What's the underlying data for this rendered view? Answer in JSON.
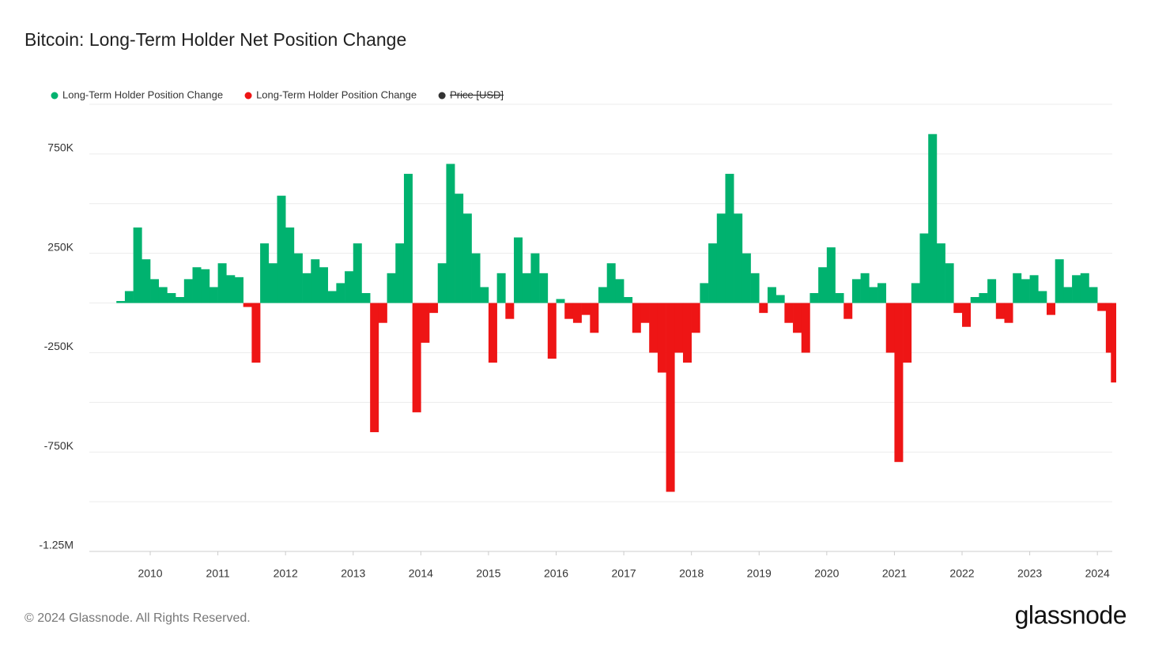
{
  "chart_data": {
    "type": "bar",
    "title": "Bitcoin: Long-Term Holder Net Position Change",
    "x": [
      2009.5,
      2009.625,
      2009.75,
      2009.875,
      2010,
      2010.125,
      2010.25,
      2010.375,
      2010.5,
      2010.625,
      2010.75,
      2010.875,
      2011,
      2011.125,
      2011.25,
      2011.375,
      2011.5,
      2011.625,
      2011.75,
      2011.875,
      2012,
      2012.125,
      2012.25,
      2012.375,
      2012.5,
      2012.625,
      2012.75,
      2012.875,
      2013,
      2013.125,
      2013.25,
      2013.375,
      2013.5,
      2013.625,
      2013.75,
      2013.875,
      2014,
      2014.125,
      2014.25,
      2014.375,
      2014.5,
      2014.625,
      2014.75,
      2014.875,
      2015,
      2015.125,
      2015.25,
      2015.375,
      2015.5,
      2015.625,
      2015.75,
      2015.875,
      2016,
      2016.125,
      2016.25,
      2016.375,
      2016.5,
      2016.625,
      2016.75,
      2016.875,
      2017,
      2017.125,
      2017.25,
      2017.375,
      2017.5,
      2017.625,
      2017.75,
      2017.875,
      2018,
      2018.125,
      2018.25,
      2018.375,
      2018.5,
      2018.625,
      2018.75,
      2018.875,
      2019,
      2019.125,
      2019.25,
      2019.375,
      2019.5,
      2019.625,
      2019.75,
      2019.875,
      2020,
      2020.125,
      2020.25,
      2020.375,
      2020.5,
      2020.625,
      2020.75,
      2020.875,
      2021,
      2021.125,
      2021.25,
      2021.375,
      2021.5,
      2021.625,
      2021.75,
      2021.875,
      2022,
      2022.125,
      2022.25,
      2022.375,
      2022.5,
      2022.625,
      2022.75,
      2022.875,
      2023,
      2023.125,
      2023.25,
      2023.375,
      2023.5,
      2023.625,
      2023.75,
      2023.875,
      2024,
      2024.125,
      2024.2
    ],
    "series": [
      {
        "name": "Long-Term Holder Position Change",
        "color": "#00b26f",
        "values": [
          10000,
          60000,
          380000,
          220000,
          120000,
          80000,
          50000,
          30000,
          120000,
          180000,
          170000,
          80000,
          200000,
          140000,
          130000,
          null,
          null,
          300000,
          200000,
          540000,
          380000,
          250000,
          150000,
          220000,
          180000,
          60000,
          100000,
          160000,
          300000,
          50000,
          null,
          null,
          150000,
          300000,
          650000,
          null,
          null,
          null,
          200000,
          700000,
          550000,
          450000,
          250000,
          80000,
          null,
          150000,
          null,
          330000,
          150000,
          250000,
          150000,
          null,
          20000,
          null,
          null,
          null,
          null,
          80000,
          200000,
          120000,
          30000,
          null,
          null,
          null,
          null,
          null,
          null,
          null,
          null,
          100000,
          300000,
          450000,
          650000,
          450000,
          250000,
          150000,
          null,
          80000,
          40000,
          null,
          null,
          null,
          50000,
          180000,
          280000,
          50000,
          null,
          120000,
          150000,
          80000,
          100000,
          null,
          null,
          null,
          100000,
          350000,
          850000,
          300000,
          200000,
          null,
          null,
          30000,
          50000,
          120000,
          null,
          null,
          150000,
          120000,
          140000,
          60000,
          null,
          220000,
          80000,
          140000,
          150000,
          80000,
          null,
          null,
          null
        ]
      },
      {
        "name": "Long-Term Holder Position Change",
        "color": "#ee1515",
        "values": [
          null,
          null,
          null,
          null,
          null,
          null,
          null,
          null,
          null,
          null,
          null,
          null,
          null,
          null,
          null,
          -20000,
          -300000,
          null,
          null,
          null,
          null,
          null,
          null,
          null,
          null,
          null,
          null,
          null,
          null,
          null,
          -650000,
          -100000,
          null,
          null,
          null,
          -550000,
          -200000,
          -50000,
          null,
          null,
          null,
          null,
          null,
          null,
          -300000,
          null,
          -80000,
          null,
          null,
          null,
          null,
          -280000,
          null,
          -80000,
          -100000,
          -60000,
          -150000,
          null,
          null,
          null,
          null,
          -150000,
          -100000,
          -250000,
          -350000,
          -950000,
          -250000,
          -300000,
          -150000,
          null,
          null,
          null,
          null,
          null,
          null,
          null,
          -50000,
          null,
          null,
          -100000,
          -150000,
          -250000,
          null,
          null,
          null,
          null,
          -80000,
          null,
          null,
          null,
          null,
          -250000,
          -800000,
          -300000,
          null,
          null,
          null,
          null,
          null,
          -50000,
          -120000,
          null,
          null,
          null,
          -80000,
          -100000,
          null,
          null,
          null,
          null,
          -60000,
          null,
          null,
          null,
          null,
          null,
          -40000,
          -250000,
          -400000
        ]
      },
      {
        "name": "Price [USD]",
        "color": "#333333",
        "hidden": true
      }
    ],
    "xlim": [
      2009.1,
      2024.22
    ],
    "xticks": [
      2010,
      2011,
      2012,
      2013,
      2014,
      2015,
      2016,
      2017,
      2018,
      2019,
      2020,
      2021,
      2022,
      2023,
      2024
    ],
    "ylim": [
      -1250000,
      1000000
    ],
    "yticks": [
      {
        "value": 750000,
        "label": "750K"
      },
      {
        "value": 250000,
        "label": "250K"
      },
      {
        "value": -250000,
        "label": "-250K"
      },
      {
        "value": -750000,
        "label": "-750K"
      },
      {
        "value": -1250000,
        "label": "-1.25M"
      }
    ],
    "ygrid": [
      1000000,
      500000,
      0,
      -500000,
      -1000000
    ],
    "grid": true
  },
  "footer": "© 2024 Glassnode. All Rights Reserved.",
  "logo": "glassnode"
}
